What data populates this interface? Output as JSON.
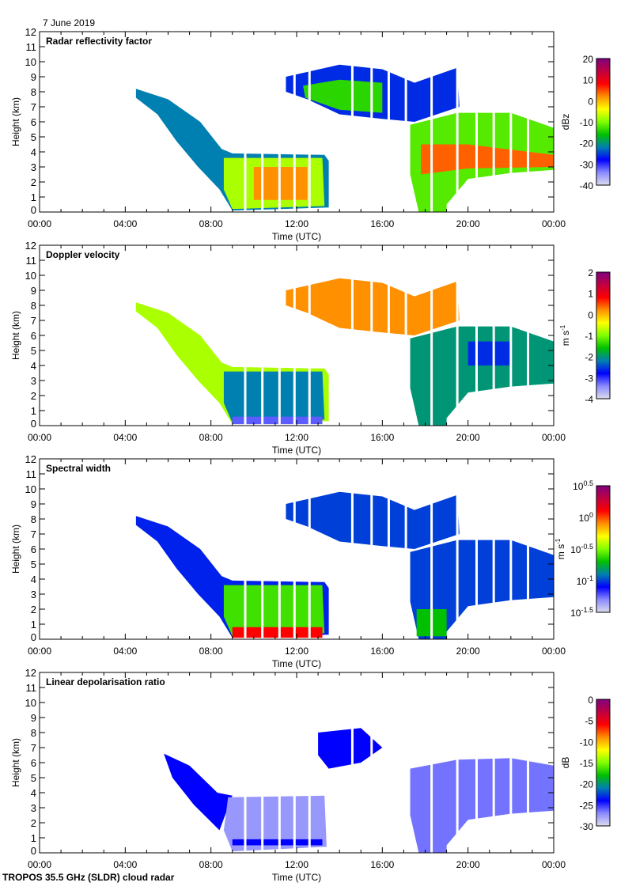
{
  "date_label": "7 June 2019",
  "footer": "TROPOS 35.5 GHz (SLDR) cloud radar",
  "chart_data": [
    {
      "type": "heatmap",
      "title": "Radar reflectivity factor",
      "xlabel": "Time (UTC)",
      "ylabel": "Height (km)",
      "xlim": [
        0,
        24
      ],
      "ylim": [
        0,
        12
      ],
      "xticks": [
        "00:00",
        "04:00",
        "08:00",
        "12:00",
        "16:00",
        "20:00",
        "00:00"
      ],
      "yticks": [
        "0",
        "1",
        "2",
        "3",
        "4",
        "5",
        "6",
        "7",
        "8",
        "9",
        "10",
        "11",
        "12"
      ],
      "colorbar": {
        "unit": "dBz",
        "unit_sup": "",
        "range": [
          -40,
          20
        ],
        "ticks": [
          "20",
          "10",
          "0",
          "-10",
          "-20",
          "-30",
          "-40"
        ]
      },
      "regions": [
        {
          "value": -22,
          "points": [
            [
              4.5,
              8.2
            ],
            [
              6,
              7.5
            ],
            [
              7.5,
              6
            ],
            [
              8.5,
              4.2
            ],
            [
              9,
              3.9
            ],
            [
              13.3,
              3.8
            ],
            [
              13.5,
              3.4
            ],
            [
              13.5,
              0.3
            ],
            [
              9,
              0.1
            ],
            [
              8.4,
              1.5
            ],
            [
              7.4,
              3
            ],
            [
              6.4,
              4.7
            ],
            [
              5.5,
              6.5
            ],
            [
              4.5,
              7.6
            ]
          ]
        },
        {
          "value": -8,
          "points": [
            [
              8.6,
              3.6
            ],
            [
              13.2,
              3.6
            ],
            [
              13.3,
              0.4
            ],
            [
              9,
              0.2
            ],
            [
              8.6,
              1.5
            ]
          ]
        },
        {
          "value": 2,
          "points": [
            [
              10,
              3
            ],
            [
              12.5,
              3
            ],
            [
              12.5,
              0.8
            ],
            [
              10,
              0.8
            ]
          ]
        },
        {
          "value": -26,
          "points": [
            [
              11.5,
              9
            ],
            [
              14,
              9.8
            ],
            [
              16,
              9.5
            ],
            [
              17.5,
              8.6
            ],
            [
              19.5,
              9.6
            ],
            [
              19.6,
              7
            ],
            [
              17.5,
              6
            ],
            [
              16,
              6.2
            ],
            [
              14,
              6.5
            ],
            [
              12.5,
              7.5
            ],
            [
              11.5,
              8
            ]
          ]
        },
        {
          "value": -14,
          "points": [
            [
              12.3,
              8.4
            ],
            [
              14,
              8.8
            ],
            [
              16,
              8.6
            ],
            [
              16,
              6.6
            ],
            [
              14,
              6.8
            ],
            [
              12.4,
              7.6
            ]
          ]
        },
        {
          "value": -12,
          "points": [
            [
              17.3,
              5.8
            ],
            [
              19.5,
              6.6
            ],
            [
              22,
              6.6
            ],
            [
              24,
              5.6
            ],
            [
              24,
              2.8
            ],
            [
              22,
              2.6
            ],
            [
              20,
              2.2
            ],
            [
              19,
              0.5
            ],
            [
              19,
              0
            ],
            [
              17.7,
              0
            ],
            [
              17.3,
              2.5
            ]
          ]
        },
        {
          "value": 4,
          "points": [
            [
              17.8,
              4.5
            ],
            [
              20,
              4.5
            ],
            [
              24,
              3.8
            ],
            [
              24,
              3
            ],
            [
              20,
              2.9
            ],
            [
              17.8,
              2.5
            ]
          ]
        }
      ]
    },
    {
      "type": "heatmap",
      "title": "Doppler velocity",
      "xlabel": "Time (UTC)",
      "ylabel": "Height (km)",
      "xlim": [
        0,
        24
      ],
      "ylim": [
        0,
        12
      ],
      "xticks": [
        "00:00",
        "04:00",
        "08:00",
        "12:00",
        "16:00",
        "20:00",
        "00:00"
      ],
      "yticks": [
        "0",
        "1",
        "2",
        "3",
        "4",
        "5",
        "6",
        "7",
        "8",
        "9",
        "10",
        "11",
        "12"
      ],
      "colorbar": {
        "unit": "m s",
        "unit_sup": "-1",
        "range": [
          -4,
          2
        ],
        "ticks": [
          "2",
          "1",
          "0",
          "-1",
          "-2",
          "-3",
          "-4"
        ]
      },
      "regions": [
        {
          "value": -0.8,
          "points": [
            [
              4.5,
              8.2
            ],
            [
              6,
              7.5
            ],
            [
              7.5,
              6
            ],
            [
              8.5,
              4.2
            ],
            [
              9,
              3.9
            ],
            [
              13.3,
              3.8
            ],
            [
              13.5,
              3.4
            ],
            [
              13.5,
              0.3
            ],
            [
              9,
              0.1
            ],
            [
              8.4,
              1.5
            ],
            [
              7.4,
              3
            ],
            [
              6.4,
              4.7
            ],
            [
              5.5,
              6.5
            ],
            [
              4.5,
              7.6
            ]
          ]
        },
        {
          "value": -2.2,
          "points": [
            [
              8.6,
              3.6
            ],
            [
              13.2,
              3.6
            ],
            [
              13.3,
              0.4
            ],
            [
              9,
              0.2
            ],
            [
              8.6,
              1.5
            ]
          ]
        },
        {
          "value": -3.2,
          "points": [
            [
              9,
              0.6
            ],
            [
              13.2,
              0.6
            ],
            [
              13.2,
              0.1
            ],
            [
              9,
              0.1
            ]
          ]
        },
        {
          "value": 0.2,
          "points": [
            [
              11.5,
              9
            ],
            [
              14,
              9.8
            ],
            [
              16,
              9.5
            ],
            [
              17.5,
              8.6
            ],
            [
              19.5,
              9.6
            ],
            [
              19.6,
              7
            ],
            [
              17.5,
              6
            ],
            [
              16,
              6.2
            ],
            [
              14,
              6.5
            ],
            [
              12.5,
              7.5
            ],
            [
              11.5,
              8
            ]
          ]
        },
        {
          "value": -2.0,
          "points": [
            [
              17.3,
              5.8
            ],
            [
              19.5,
              6.6
            ],
            [
              22,
              6.6
            ],
            [
              24,
              5.6
            ],
            [
              24,
              2.8
            ],
            [
              22,
              2.6
            ],
            [
              20,
              2.2
            ],
            [
              19,
              0.5
            ],
            [
              19,
              0
            ],
            [
              17.7,
              0
            ],
            [
              17.3,
              2.5
            ]
          ]
        },
        {
          "value": -2.6,
          "points": [
            [
              20,
              5.6
            ],
            [
              22,
              5.6
            ],
            [
              22,
              4
            ],
            [
              20,
              4
            ]
          ]
        }
      ]
    },
    {
      "type": "heatmap",
      "title": "Spectral width",
      "xlabel": "Time (UTC)",
      "ylabel": "Height (km)",
      "xlim": [
        0,
        24
      ],
      "ylim": [
        0,
        12
      ],
      "xticks": [
        "00:00",
        "04:00",
        "08:00",
        "12:00",
        "16:00",
        "20:00",
        "00:00"
      ],
      "yticks": [
        "0",
        "1",
        "2",
        "3",
        "4",
        "5",
        "6",
        "7",
        "8",
        "9",
        "10",
        "11",
        "12"
      ],
      "colorbar": {
        "unit": "m s",
        "unit_sup": "-1",
        "range": [
          -1.5,
          0.5
        ],
        "log": true,
        "ticks": [
          "10^0.5",
          "10^0",
          "10^-0.5",
          "10^-1",
          "10^-1.5"
        ]
      },
      "regions": [
        {
          "value": -1.05,
          "points": [
            [
              4.5,
              8.2
            ],
            [
              6,
              7.5
            ],
            [
              7.5,
              6
            ],
            [
              8.5,
              4.2
            ],
            [
              9,
              3.9
            ],
            [
              13.3,
              3.8
            ],
            [
              13.5,
              3.4
            ],
            [
              13.5,
              0.3
            ],
            [
              9,
              0.1
            ],
            [
              8.4,
              1.5
            ],
            [
              7.4,
              3
            ],
            [
              6.4,
              4.7
            ],
            [
              5.5,
              6.5
            ],
            [
              4.5,
              7.6
            ]
          ]
        },
        {
          "value": -0.6,
          "points": [
            [
              8.6,
              3.6
            ],
            [
              13.2,
              3.6
            ],
            [
              13.3,
              0.4
            ],
            [
              9,
              0.2
            ],
            [
              8.6,
              1.5
            ]
          ]
        },
        {
          "value": 0.1,
          "points": [
            [
              9,
              0.8
            ],
            [
              13.2,
              0.8
            ],
            [
              13.2,
              0.1
            ],
            [
              9,
              0.1
            ]
          ]
        },
        {
          "value": -1.0,
          "points": [
            [
              11.5,
              9
            ],
            [
              14,
              9.8
            ],
            [
              16,
              9.5
            ],
            [
              17.5,
              8.6
            ],
            [
              19.5,
              9.6
            ],
            [
              19.6,
              7
            ],
            [
              17.5,
              6
            ],
            [
              16,
              6.2
            ],
            [
              14,
              6.5
            ],
            [
              12.5,
              7.5
            ],
            [
              11.5,
              8
            ]
          ]
        },
        {
          "value": -1.0,
          "points": [
            [
              17.3,
              5.8
            ],
            [
              19.5,
              6.6
            ],
            [
              22,
              6.6
            ],
            [
              24,
              5.6
            ],
            [
              24,
              2.8
            ],
            [
              22,
              2.6
            ],
            [
              20,
              2.2
            ],
            [
              19,
              0.5
            ],
            [
              19,
              0
            ],
            [
              17.7,
              0
            ],
            [
              17.3,
              2.5
            ]
          ]
        },
        {
          "value": -0.7,
          "points": [
            [
              17.6,
              2
            ],
            [
              19,
              2
            ],
            [
              19,
              0.2
            ],
            [
              17.6,
              0.2
            ]
          ]
        }
      ]
    },
    {
      "type": "heatmap",
      "title": "Linear depolarisation ratio",
      "xlabel": "Time (UTC)",
      "ylabel": "Height (km)",
      "xlim": [
        0,
        24
      ],
      "ylim": [
        0,
        12
      ],
      "xticks": [
        "00:00",
        "04:00",
        "08:00",
        "12:00",
        "16:00",
        "20:00",
        "00:00"
      ],
      "yticks": [
        "0",
        "1",
        "2",
        "3",
        "4",
        "5",
        "6",
        "7",
        "8",
        "9",
        "10",
        "11",
        "12"
      ],
      "colorbar": {
        "unit": "dB",
        "unit_sup": "",
        "range": [
          -30,
          0
        ],
        "ticks": [
          "0",
          "-5",
          "-10",
          "-15",
          "-20",
          "-25",
          "-30"
        ]
      },
      "regions": [
        {
          "value": -24,
          "points": [
            [
              5.8,
              6.6
            ],
            [
              7,
              5.8
            ],
            [
              8.3,
              4
            ],
            [
              9,
              3.8
            ],
            [
              8.4,
              1.5
            ],
            [
              7.2,
              3.2
            ],
            [
              6.2,
              5
            ]
          ]
        },
        {
          "value": -27.5,
          "points": [
            [
              8.8,
              3.7
            ],
            [
              13.3,
              3.8
            ],
            [
              13.4,
              0.4
            ],
            [
              9,
              0.1
            ],
            [
              8.6,
              1.5
            ]
          ]
        },
        {
          "value": -24,
          "points": [
            [
              9,
              0.9
            ],
            [
              13.2,
              0.9
            ],
            [
              13.2,
              0.5
            ],
            [
              9,
              0.5
            ]
          ]
        },
        {
          "value": -24,
          "points": [
            [
              13,
              8
            ],
            [
              15,
              8.3
            ],
            [
              16,
              7
            ],
            [
              15,
              6
            ],
            [
              13.5,
              5.6
            ],
            [
              13,
              6.5
            ]
          ]
        },
        {
          "value": -26.5,
          "points": [
            [
              17.3,
              5.6
            ],
            [
              19.5,
              6.2
            ],
            [
              22,
              6.3
            ],
            [
              24,
              5.8
            ],
            [
              24,
              2.8
            ],
            [
              22,
              2.6
            ],
            [
              20,
              2.2
            ],
            [
              19,
              0.5
            ],
            [
              19,
              0
            ],
            [
              17.7,
              0
            ],
            [
              17.3,
              2.5
            ]
          ]
        }
      ]
    }
  ],
  "data_gaps_utc_hours": [
    9.6,
    10.4,
    11.2,
    11.9,
    12.6,
    14.6,
    15.5,
    16.3,
    17.1,
    18.3,
    19.5,
    20.4,
    21.2,
    22.0,
    22.8
  ],
  "colormap": [
    "#dcdcec",
    "#8a8aff",
    "#0000ff",
    "#0080b0",
    "#00c000",
    "#80ff00",
    "#ffff00",
    "#ff9000",
    "#ff0000",
    "#c00040",
    "#800080"
  ]
}
